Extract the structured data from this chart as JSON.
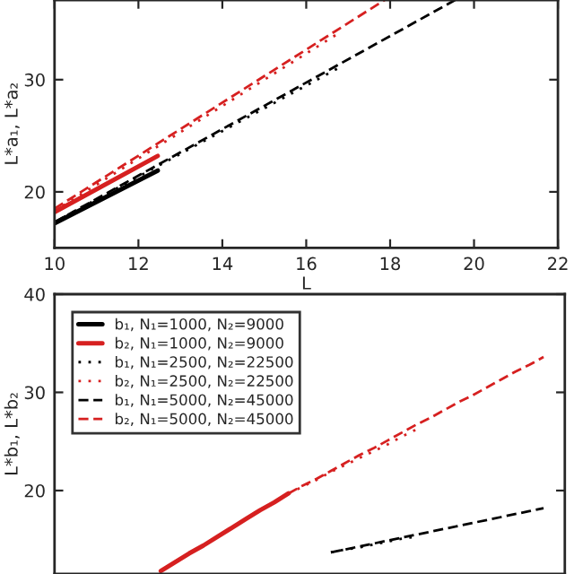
{
  "chart_data": [
    {
      "type": "line",
      "xlabel": "L",
      "ylabel": "L*a₁, L*a₂",
      "xlim": [
        10,
        22
      ],
      "ylim": [
        15,
        37.1
      ],
      "xticks": [
        10,
        12,
        14,
        16,
        18,
        20,
        22
      ],
      "yticks": [
        20,
        30
      ],
      "grid": false,
      "legend": false,
      "series": [
        {
          "color": "#000000",
          "line_style": "solid",
          "x": [
            10,
            12.46
          ],
          "values": [
            17.2,
            21.9
          ]
        },
        {
          "color": "#d62020",
          "line_style": "solid",
          "x": [
            10,
            12.46
          ],
          "values": [
            18.2,
            23.2
          ]
        },
        {
          "color": "#000000",
          "line_style": "dotted",
          "x": [
            10,
            16.8
          ],
          "values": [
            17.3,
            31.1
          ]
        },
        {
          "color": "#d62020",
          "line_style": "dotted",
          "x": [
            10,
            16.8
          ],
          "values": [
            18.3,
            34.2
          ]
        },
        {
          "color": "#000000",
          "line_style": "dashed",
          "x": [
            10,
            19.55
          ],
          "values": [
            17.3,
            37.1
          ]
        },
        {
          "color": "#d62020",
          "line_style": "dashed",
          "x": [
            10,
            17.87
          ],
          "values": [
            18.5,
            37.1
          ]
        }
      ]
    },
    {
      "type": "line",
      "ylabel": "L*b₁, L*b₂",
      "ylim": [
        11.5,
        40
      ],
      "yticks": [
        20,
        30,
        40
      ],
      "tick_labels": "y",
      "grid": false,
      "legend": "top left",
      "categories": [
        null,
        null,
        null,
        null,
        null,
        null,
        null,
        null,
        null,
        null,
        null,
        null,
        null,
        null,
        null,
        null,
        null,
        null,
        null,
        null,
        null,
        null,
        null,
        null,
        null,
        null,
        null,
        null,
        null,
        null,
        null,
        null,
        null,
        null,
        null,
        null
      ],
      "series": [
        {
          "name": "b₁, N₁=1000, N₂=9000",
          "color": "#000000",
          "line_style": "solid",
          "values": [
            null,
            null,
            null,
            null,
            null,
            null,
            null,
            null,
            null,
            null,
            null,
            null,
            null,
            null,
            null,
            null,
            null,
            null,
            null,
            null,
            null,
            null,
            null,
            null,
            null,
            null,
            null,
            null,
            null,
            null,
            null,
            null,
            null,
            null,
            null,
            null
          ]
        },
        {
          "name": "b₂, N₁=1000, N₂=9000",
          "color": "#d62020",
          "line_style": "solid",
          "values": [
            null,
            null,
            null,
            null,
            null,
            null,
            null,
            11.8,
            12.7,
            13.6,
            14.4,
            15.3,
            16.2,
            17.1,
            18.0,
            18.8,
            19.7,
            null,
            null,
            null,
            null,
            null,
            null,
            null,
            null,
            null,
            null,
            null,
            null,
            null,
            null,
            null,
            null,
            null,
            null,
            null
          ]
        },
        {
          "name": "b₁, N₁=2500, N₂=22500",
          "color": "#000000",
          "line_style": "dotted",
          "values": [
            null,
            null,
            null,
            null,
            null,
            null,
            null,
            null,
            null,
            null,
            null,
            null,
            null,
            null,
            null,
            null,
            null,
            null,
            null,
            13.7,
            14.0,
            14.2,
            14.5,
            14.8,
            15.1,
            15.3,
            null,
            null,
            null,
            null,
            null,
            null,
            null,
            null,
            null,
            null
          ]
        },
        {
          "name": "b₂, N₁=2500, N₂=22500",
          "color": "#d62020",
          "line_style": "dotted",
          "values": [
            null,
            null,
            null,
            null,
            null,
            null,
            null,
            null,
            null,
            null,
            null,
            null,
            null,
            null,
            null,
            null,
            19.7,
            20.4,
            21.1,
            21.9,
            22.6,
            23.3,
            24.0,
            24.7,
            25.5,
            26.2,
            null,
            null,
            null,
            null,
            null,
            null,
            null,
            null,
            null,
            null
          ]
        },
        {
          "name": "b₁, N₁=5000, N₂=45000",
          "color": "#000000",
          "line_style": "dashed",
          "values": [
            null,
            null,
            null,
            null,
            null,
            null,
            null,
            null,
            null,
            null,
            null,
            null,
            null,
            null,
            null,
            null,
            null,
            null,
            null,
            13.7,
            14.0,
            14.3,
            14.6,
            14.9,
            15.2,
            15.5,
            15.8,
            16.1,
            16.4,
            16.7,
            17.0,
            17.3,
            17.6,
            17.9,
            18.2,
            null
          ]
        },
        {
          "name": "b₂, N₁=5000, N₂=45000",
          "color": "#d62020",
          "line_style": "dashed",
          "values": [
            null,
            null,
            null,
            null,
            null,
            null,
            null,
            null,
            null,
            null,
            null,
            null,
            null,
            null,
            null,
            null,
            19.7,
            20.5,
            21.2,
            22.0,
            22.8,
            23.6,
            24.3,
            25.1,
            25.9,
            26.7,
            27.4,
            28.2,
            29.0,
            29.7,
            30.5,
            31.3,
            32.1,
            32.8,
            33.6,
            null
          ]
        }
      ]
    }
  ]
}
